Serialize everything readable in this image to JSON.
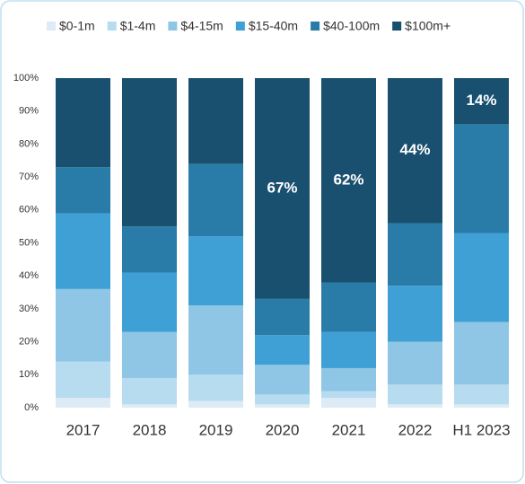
{
  "chart_data": {
    "type": "stacked_bar",
    "categories": [
      "2017",
      "2018",
      "2019",
      "2020",
      "2021",
      "2022",
      "H1 2023"
    ],
    "series": [
      {
        "name": "$0-1m",
        "color": "#dcebf5",
        "values": [
          3,
          1,
          2,
          1,
          3,
          1,
          1
        ]
      },
      {
        "name": "$1-4m",
        "color": "#b7dbef",
        "values": [
          11,
          8,
          8,
          3,
          2,
          6,
          6
        ]
      },
      {
        "name": "$4-15m",
        "color": "#8fc6e5",
        "values": [
          22,
          14,
          21,
          9,
          7,
          13,
          19
        ]
      },
      {
        "name": "$15-40m",
        "color": "#3fa0d6",
        "values": [
          23,
          18,
          21,
          9,
          11,
          17,
          27
        ]
      },
      {
        "name": "$40-100m",
        "color": "#2a7ca8",
        "values": [
          14,
          14,
          22,
          11,
          15,
          19,
          33
        ]
      },
      {
        "name": "$100m+",
        "color": "#1a506f",
        "values": [
          27,
          45,
          26,
          67,
          62,
          44,
          14
        ],
        "value_labels": [
          null,
          null,
          null,
          "67%",
          "62%",
          "44%",
          "14%"
        ]
      }
    ],
    "ylim": [
      0,
      100
    ],
    "yticks": [
      {
        "value": 0,
        "label": "0%"
      },
      {
        "value": 10,
        "label": "10%"
      },
      {
        "value": 20,
        "label": "20%"
      },
      {
        "value": 30,
        "label": "30%"
      },
      {
        "value": 40,
        "label": "40%"
      },
      {
        "value": 50,
        "label": "50%"
      },
      {
        "value": 60,
        "label": "60%"
      },
      {
        "value": 70,
        "label": "70%"
      },
      {
        "value": 80,
        "label": "80%"
      },
      {
        "value": 90,
        "label": "90%"
      },
      {
        "value": 100,
        "label": "100%"
      }
    ],
    "grid": false,
    "legend": "top"
  }
}
